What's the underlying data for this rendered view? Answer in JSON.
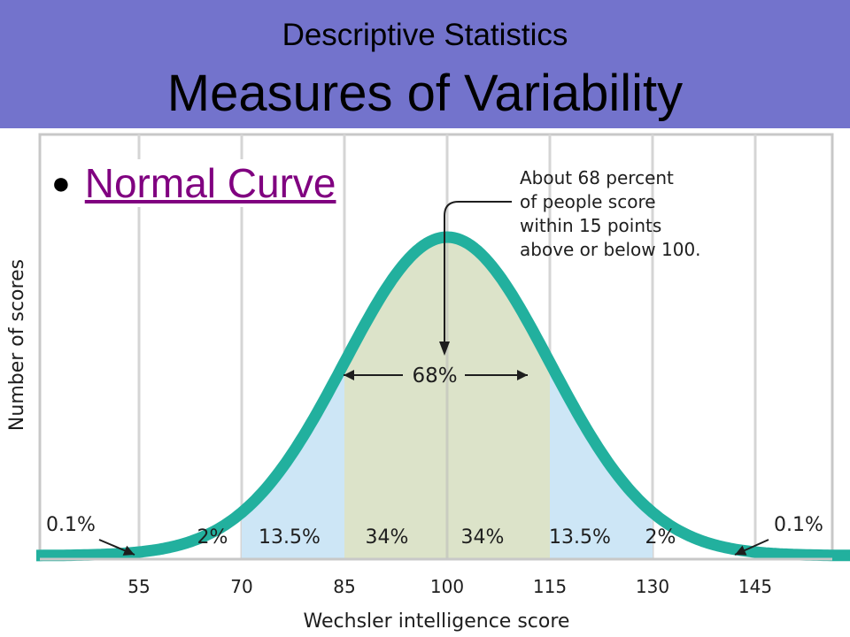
{
  "header": {
    "subtitle": "Descriptive Statistics",
    "title": "Measures of Variability"
  },
  "bullet": {
    "link_label": "Normal Curve"
  },
  "colors": {
    "header_bg": "#7373cc",
    "curve": "#22b09e",
    "center_fill": "#dce3c9",
    "side_fill": "#cde6f6",
    "gridline": "#d5d5d5",
    "link": "#800080"
  },
  "chart_data": {
    "type": "area",
    "distribution": "normal",
    "mean": 100,
    "sd": 15,
    "xlabel": "Wechsler intelligence score",
    "ylabel": "Number of scores",
    "x_ticks": [
      55,
      70,
      85,
      100,
      115,
      130,
      145
    ],
    "xlim": [
      40,
      160
    ],
    "grid": true,
    "region_labels": [
      {
        "label": "0.1%",
        "from": 40,
        "to": 55
      },
      {
        "label": "2%",
        "from": 55,
        "to": 70
      },
      {
        "label": "13.5%",
        "from": 70,
        "to": 85
      },
      {
        "label": "34%",
        "from": 85,
        "to": 100
      },
      {
        "label": "34%",
        "from": 100,
        "to": 115
      },
      {
        "label": "13.5%",
        "from": 115,
        "to": 130
      },
      {
        "label": "2%",
        "from": 130,
        "to": 145
      },
      {
        "label": "0.1%",
        "from": 145,
        "to": 160
      }
    ],
    "span_label": "68%",
    "span_range": [
      85,
      115
    ],
    "annotation": [
      "About 68 percent",
      "of people score",
      "within 15 points",
      "above or below 100."
    ],
    "annotation_points_to": 100
  }
}
